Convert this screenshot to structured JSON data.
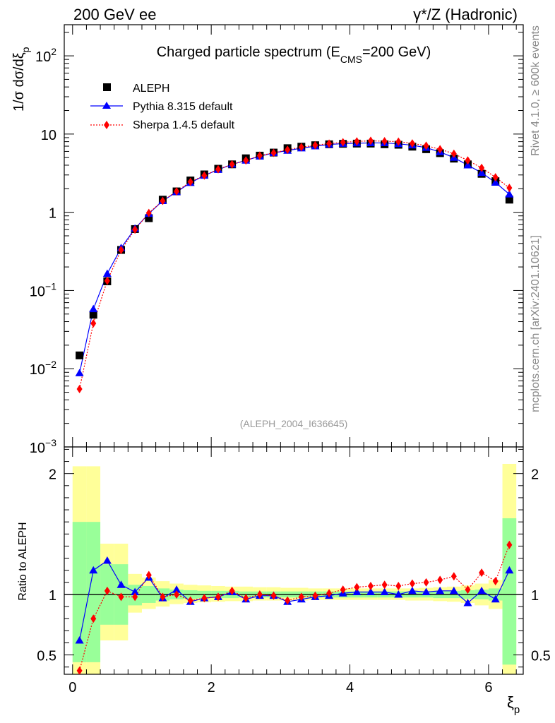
{
  "header": {
    "left": "200 GeV ee",
    "right": "γ*/Z (Hadronic)"
  },
  "side_labels": {
    "top": "Rivet 4.1.0, ≥ 600k events",
    "bottom": "mcplots.cern.ch [arXiv:2401.10621]"
  },
  "chart_data": [
    {
      "type": "scatter",
      "panel": "main",
      "title_prefix": "Charged particle spectrum (E",
      "title_sub": "CMS",
      "title_suffix": "=200 GeV)",
      "ylabel_prefix": "1/σ  dσ/dξ",
      "ylabel_sub": "p",
      "yscale": "log",
      "ylim": [
        0.001,
        250
      ],
      "xlim": [
        -0.12,
        6.5
      ],
      "y_ticks": [
        {
          "v": 100,
          "base": "10",
          "exp": "2"
        },
        {
          "v": 10,
          "base": "10",
          "exp": ""
        },
        {
          "v": 1,
          "base": "1",
          "exp": ""
        },
        {
          "v": 0.1,
          "base": "10",
          "exp": "−1"
        },
        {
          "v": 0.01,
          "base": "10",
          "exp": "−2"
        },
        {
          "v": 0.001,
          "base": "10",
          "exp": "−3"
        }
      ],
      "analysis_label": "(ALEPH_2004_I636645)",
      "legend_position": "top-left",
      "x": [
        0.1,
        0.3,
        0.5,
        0.7,
        0.9,
        1.1,
        1.3,
        1.5,
        1.7,
        1.9,
        2.1,
        2.3,
        2.5,
        2.7,
        2.9,
        3.1,
        3.3,
        3.5,
        3.7,
        3.9,
        4.1,
        4.3,
        4.5,
        4.7,
        4.9,
        5.1,
        5.3,
        5.5,
        5.7,
        5.9,
        6.1,
        6.3
      ],
      "series": [
        {
          "name": "ALEPH",
          "color": "#000000",
          "marker": "square",
          "line": "none",
          "values": [
            0.0148,
            0.049,
            0.131,
            0.33,
            0.61,
            0.84,
            1.45,
            1.85,
            2.55,
            3.05,
            3.6,
            4.1,
            4.9,
            5.3,
            5.8,
            6.6,
            6.9,
            7.2,
            7.4,
            7.5,
            7.55,
            7.55,
            7.4,
            7.3,
            6.9,
            6.4,
            5.7,
            4.85,
            4.1,
            3.1,
            2.5,
            1.45
          ]
        },
        {
          "name": "Pythia 8.315 default",
          "color": "#0000ff",
          "marker": "triangle",
          "line": "solid",
          "values": [
            0.0088,
            0.058,
            0.164,
            0.35,
            0.62,
            0.96,
            1.4,
            1.82,
            2.38,
            2.95,
            3.5,
            4.1,
            4.6,
            5.2,
            5.75,
            6.15,
            6.6,
            7.0,
            7.35,
            7.55,
            7.65,
            7.7,
            7.7,
            7.5,
            7.2,
            6.7,
            5.9,
            5.0,
            4.0,
            3.2,
            2.4,
            1.7
          ]
        },
        {
          "name": "Sherpa 1.4.5 default",
          "color": "#ff0000",
          "marker": "diamond",
          "line": "dotted",
          "values": [
            0.0055,
            0.038,
            0.133,
            0.33,
            0.6,
            0.98,
            1.4,
            1.85,
            2.45,
            2.95,
            3.55,
            4.1,
            4.6,
            5.3,
            5.75,
            6.3,
            6.8,
            7.2,
            7.55,
            7.85,
            8.05,
            8.2,
            8.1,
            8.0,
            7.6,
            7.1,
            6.4,
            5.6,
            4.6,
            3.7,
            2.8,
            2.05
          ]
        }
      ]
    },
    {
      "type": "scatter",
      "panel": "ratio",
      "ylabel": "Ratio to ALEPH",
      "xlabel_base": "ξ",
      "xlabel_sub": "p",
      "ylim": [
        0.34,
        2.22
      ],
      "xlim": [
        -0.12,
        6.5
      ],
      "x_ticks": [
        0,
        2,
        4,
        6
      ],
      "x_tick_labels": [
        "0",
        "2",
        "4",
        "6"
      ],
      "y_ticks": [
        0.5,
        1,
        2
      ],
      "y_tick_labels": [
        "0.5",
        "1",
        "2"
      ],
      "reference": 1,
      "x": [
        0.1,
        0.3,
        0.5,
        0.7,
        0.9,
        1.1,
        1.3,
        1.5,
        1.7,
        1.9,
        2.1,
        2.3,
        2.5,
        2.7,
        2.9,
        3.1,
        3.3,
        3.5,
        3.7,
        3.9,
        4.1,
        4.3,
        4.5,
        4.7,
        4.9,
        5.1,
        5.3,
        5.5,
        5.7,
        5.9,
        6.1,
        6.3
      ],
      "bin_edges": [
        0.0,
        0.2,
        0.4,
        0.6,
        0.8,
        1.0,
        1.2,
        1.4,
        1.6,
        1.8,
        2.0,
        2.2,
        2.4,
        2.6,
        2.8,
        3.0,
        3.2,
        3.4,
        3.6,
        3.8,
        4.0,
        4.2,
        4.4,
        4.6,
        4.8,
        5.0,
        5.2,
        5.4,
        5.6,
        5.8,
        6.0,
        6.2,
        6.4
      ],
      "band_outer": {
        "color": "#ffff99",
        "low": [
          0.2,
          0.2,
          0.62,
          0.62,
          0.85,
          0.88,
          0.9,
          0.92,
          0.93,
          0.935,
          0.94,
          0.945,
          0.945,
          0.95,
          0.95,
          0.95,
          0.95,
          0.955,
          0.955,
          0.955,
          0.955,
          0.955,
          0.955,
          0.955,
          0.95,
          0.95,
          0.945,
          0.94,
          0.93,
          0.91,
          0.88,
          0.2
        ],
        "high": [
          2.06,
          2.06,
          1.42,
          1.42,
          1.17,
          1.14,
          1.11,
          1.09,
          1.08,
          1.075,
          1.07,
          1.065,
          1.065,
          1.06,
          1.06,
          1.055,
          1.055,
          1.05,
          1.05,
          1.05,
          1.05,
          1.05,
          1.05,
          1.05,
          1.05,
          1.055,
          1.06,
          1.065,
          1.075,
          1.09,
          1.12,
          2.08
        ]
      },
      "band_inner": {
        "color": "#99ff99",
        "low": [
          0.44,
          0.44,
          0.75,
          0.75,
          0.91,
          0.93,
          0.95,
          0.96,
          0.965,
          0.97,
          0.97,
          0.97,
          0.975,
          0.975,
          0.975,
          0.975,
          0.975,
          0.975,
          0.975,
          0.975,
          0.975,
          0.975,
          0.975,
          0.975,
          0.975,
          0.975,
          0.97,
          0.97,
          0.965,
          0.96,
          0.95,
          0.42
        ],
        "high": [
          1.6,
          1.6,
          1.25,
          1.25,
          1.08,
          1.07,
          1.05,
          1.04,
          1.035,
          1.03,
          1.03,
          1.03,
          1.025,
          1.025,
          1.025,
          1.025,
          1.025,
          1.025,
          1.025,
          1.025,
          1.025,
          1.025,
          1.025,
          1.025,
          1.025,
          1.025,
          1.03,
          1.03,
          1.035,
          1.04,
          1.05,
          1.63
        ]
      },
      "series": [
        {
          "name": "Pythia 8.315 default",
          "color": "#0000ff",
          "marker": "triangle",
          "line": "solid",
          "values": [
            0.62,
            1.2,
            1.28,
            1.08,
            1.02,
            1.14,
            0.97,
            1.04,
            0.94,
            0.97,
            0.98,
            1.02,
            0.96,
            0.99,
            0.99,
            0.94,
            0.96,
            0.98,
            0.99,
            1.01,
            1.02,
            1.02,
            1.02,
            1.0,
            1.03,
            1.02,
            1.03,
            1.03,
            0.93,
            1.03,
            0.96,
            1.2
          ]
        },
        {
          "name": "Sherpa 1.4.5 default",
          "color": "#ff0000",
          "marker": "diamond",
          "line": "dotted",
          "values": [
            0.37,
            0.8,
            1.03,
            0.98,
            0.98,
            1.16,
            0.98,
            1.0,
            0.95,
            0.97,
            0.98,
            1.03,
            0.97,
            1.0,
            0.99,
            0.95,
            0.98,
            0.99,
            1.01,
            1.04,
            1.06,
            1.07,
            1.08,
            1.07,
            1.09,
            1.1,
            1.12,
            1.15,
            1.04,
            1.18,
            1.11,
            1.41
          ]
        }
      ]
    }
  ]
}
